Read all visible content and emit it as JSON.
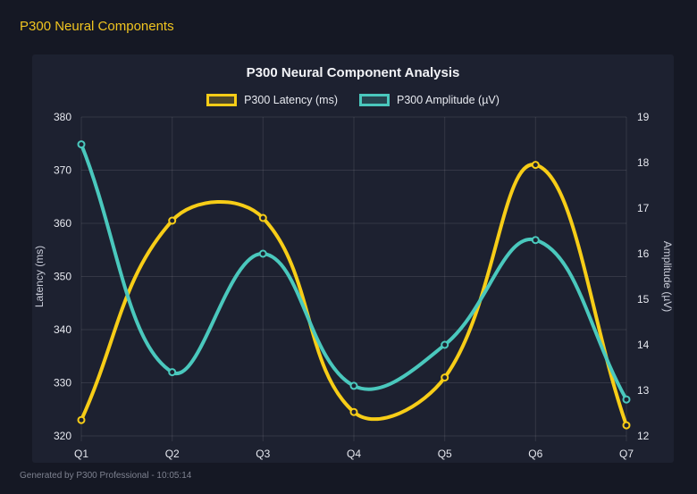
{
  "page": {
    "title": "P300 Neural Components",
    "footer": "Generated by P300 Professional - 10:05:14"
  },
  "colors": {
    "page_background": "#151824",
    "panel_background": "#1D2130",
    "grid": "rgba(255,255,255,0.10)",
    "tick_text": "#E6E8EF",
    "yellow": "#F7CD17",
    "teal": "#4AC8BD",
    "page_title_yellow": "#F0C420"
  },
  "chart_data": {
    "type": "line",
    "title": "P300 Neural Component Analysis",
    "categories": [
      "Q1",
      "Q2",
      "Q3",
      "Q4",
      "Q5",
      "Q6",
      "Q7"
    ],
    "series": [
      {
        "key": "latency",
        "name": "P300 Latency (ms)",
        "axis": "left",
        "color": "#F7CD17",
        "fill_alpha": "rgba(247,205,23,0.22)",
        "values": [
          323,
          360.5,
          361,
          324.5,
          331,
          371,
          322
        ]
      },
      {
        "key": "amplitude",
        "name": "P300 Amplitude (µV)",
        "axis": "right",
        "color": "#4AC8BD",
        "fill_alpha": "rgba(74,200,189,0.22)",
        "values": [
          18.4,
          13.4,
          16.0,
          13.1,
          14.0,
          16.3,
          12.8
        ]
      }
    ],
    "left_axis": {
      "label": "Latency (ms)",
      "min": 320,
      "max": 380,
      "step": 10
    },
    "right_axis": {
      "label": "Amplitude (µV)",
      "min": 12,
      "max": 19,
      "step": 1
    },
    "legend_position": "top",
    "grid": true,
    "line_tension": 0.4
  }
}
